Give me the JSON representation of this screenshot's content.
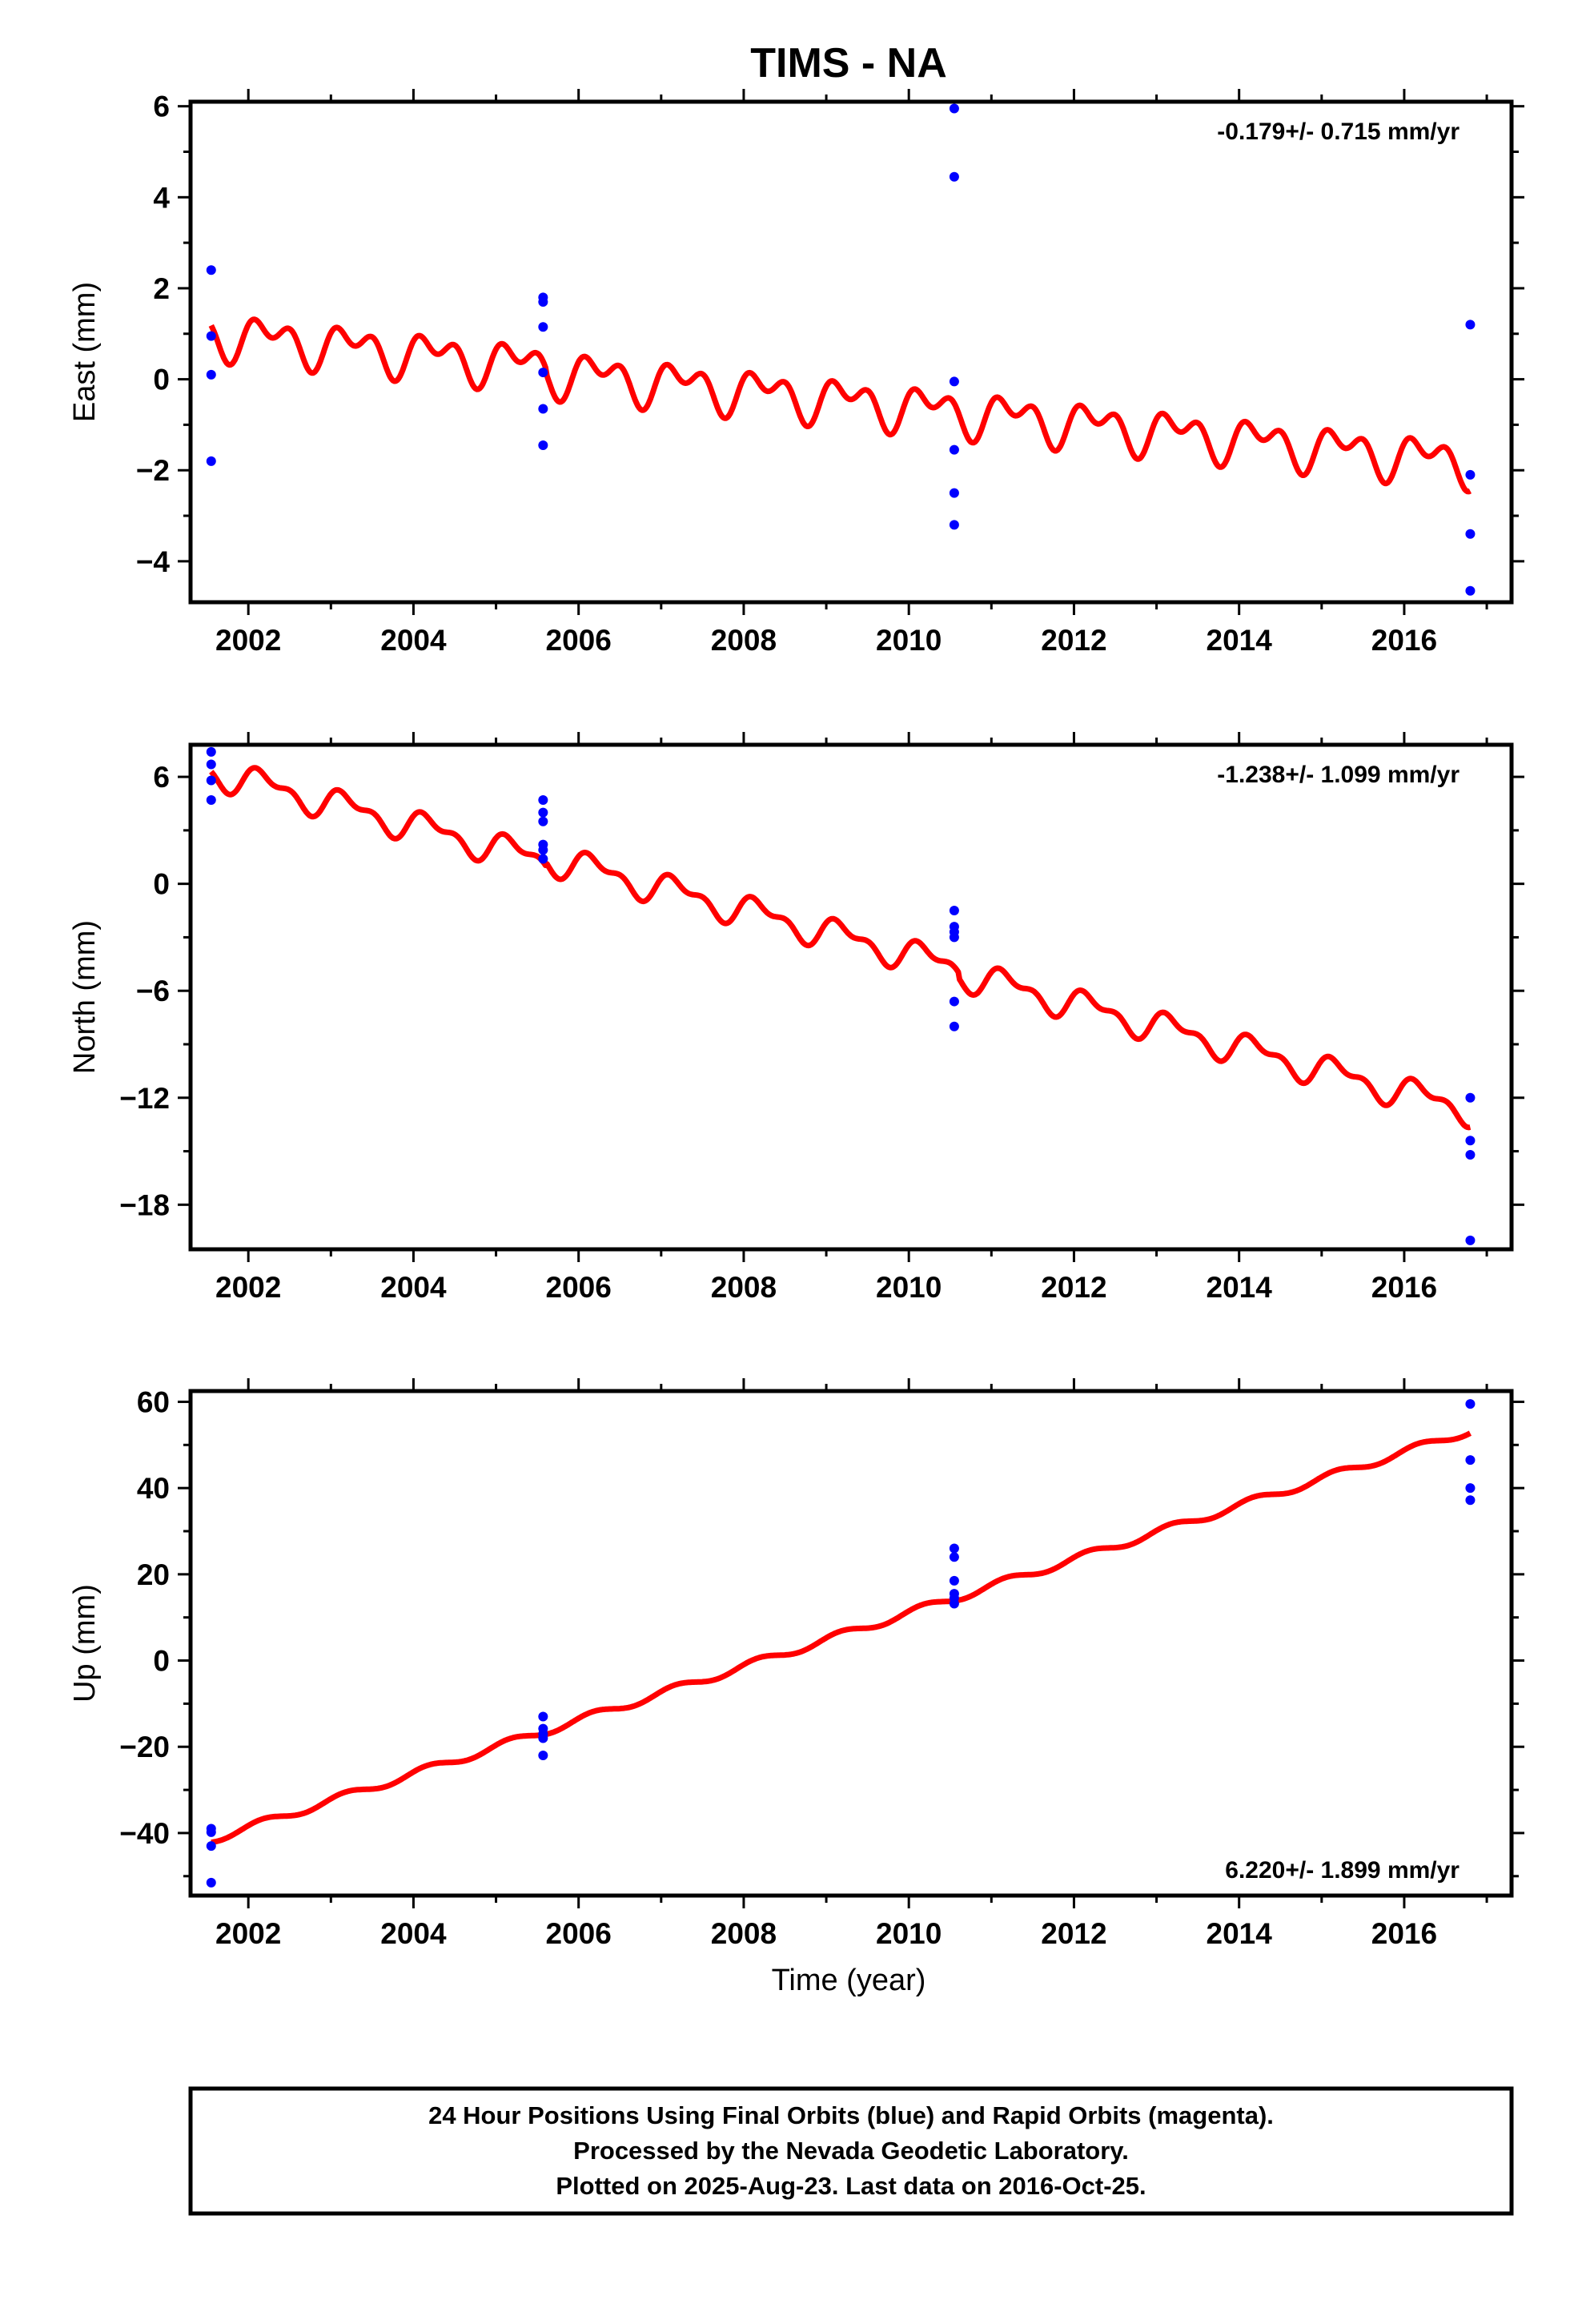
{
  "title": "TIMS - NA",
  "xlabel": "Time (year)",
  "footer": [
    "24 Hour Positions Using Final Orbits (blue) and Rapid Orbits (magenta).",
    "Processed by the Nevada Geodetic Laboratory.",
    "Plotted on 2025-Aug-23. Last data on 2016-Oct-25."
  ],
  "colors": {
    "observations": "#0000ff",
    "model": "#ff0000",
    "axes": "#000000"
  },
  "chart_data": [
    {
      "type": "scatter",
      "ylabel": "East (mm)",
      "rate_label": "-0.179+/- 0.715 mm/yr",
      "rate_position": "top-right",
      "xlim": [
        2001.3,
        2017.3
      ],
      "ylim": [
        -4.9,
        6.1
      ],
      "x_ticks": [
        2002,
        2004,
        2006,
        2008,
        2010,
        2012,
        2014,
        2016
      ],
      "x_tick_labels": [
        "2002",
        "2004",
        "2006",
        "2008",
        "2010",
        "2012",
        "2014",
        "2016"
      ],
      "y_ticks": [
        -4,
        -2,
        0,
        2,
        4,
        6
      ],
      "y_tick_labels": [
        "−4",
        "−2",
        "0",
        "2",
        "4",
        "6"
      ],
      "grid": false,
      "model": {
        "offset": 1.0,
        "rate": -0.179,
        "amp_annual": 0.35,
        "phase_annual": 0.0,
        "amp_semi": 0.3,
        "phase_semi": 1.2,
        "step_years": [
          2005.6,
          2010.6
        ],
        "steps": [
          -0.1,
          0.0
        ]
      },
      "observations": [
        {
          "x": 2001.55,
          "y": 2.4
        },
        {
          "x": 2001.55,
          "y": 0.95
        },
        {
          "x": 2001.55,
          "y": 0.1
        },
        {
          "x": 2001.55,
          "y": -1.8
        },
        {
          "x": 2005.57,
          "y": 1.8
        },
        {
          "x": 2005.57,
          "y": 1.7
        },
        {
          "x": 2005.57,
          "y": 1.15
        },
        {
          "x": 2005.57,
          "y": 0.15
        },
        {
          "x": 2005.57,
          "y": -0.65
        },
        {
          "x": 2005.57,
          "y": -1.45
        },
        {
          "x": 2010.55,
          "y": 5.95
        },
        {
          "x": 2010.55,
          "y": 4.45
        },
        {
          "x": 2010.55,
          "y": -0.05
        },
        {
          "x": 2010.55,
          "y": -1.55
        },
        {
          "x": 2010.55,
          "y": -2.5
        },
        {
          "x": 2010.55,
          "y": -3.2
        },
        {
          "x": 2016.8,
          "y": 1.2
        },
        {
          "x": 2016.8,
          "y": -2.1
        },
        {
          "x": 2016.8,
          "y": -3.4
        },
        {
          "x": 2016.8,
          "y": -4.65
        }
      ]
    },
    {
      "type": "scatter",
      "ylabel": "North (mm)",
      "rate_label": "-1.238+/- 1.099 mm/yr",
      "rate_position": "top-right",
      "xlim": [
        2001.3,
        2017.3
      ],
      "ylim": [
        -20.5,
        7.8
      ],
      "x_ticks": [
        2002,
        2004,
        2006,
        2008,
        2010,
        2012,
        2014,
        2016
      ],
      "x_tick_labels": [
        "2002",
        "2004",
        "2006",
        "2008",
        "2010",
        "2012",
        "2014",
        "2016"
      ],
      "y_ticks": [
        -18,
        -12,
        -6,
        0,
        6
      ],
      "y_tick_labels": [
        "−18",
        "−12",
        "−6",
        "0",
        "6"
      ],
      "grid": false,
      "model": {
        "offset": 6.3,
        "rate": -1.238,
        "amp_annual": 0.7,
        "phase_annual": 0.3,
        "amp_semi": 0.4,
        "phase_semi": 1.0,
        "step_years": [
          2005.6,
          2010.6
        ],
        "steps": [
          0.2,
          -0.3
        ]
      },
      "observations": [
        {
          "x": 2001.55,
          "y": 7.4
        },
        {
          "x": 2001.55,
          "y": 6.7
        },
        {
          "x": 2001.55,
          "y": 5.8
        },
        {
          "x": 2001.55,
          "y": 4.7
        },
        {
          "x": 2005.57,
          "y": 4.7
        },
        {
          "x": 2005.57,
          "y": 4.0
        },
        {
          "x": 2005.57,
          "y": 3.5
        },
        {
          "x": 2005.57,
          "y": 2.2
        },
        {
          "x": 2005.57,
          "y": 1.9
        },
        {
          "x": 2005.57,
          "y": 1.4
        },
        {
          "x": 2010.55,
          "y": -1.5
        },
        {
          "x": 2010.55,
          "y": -2.4
        },
        {
          "x": 2010.55,
          "y": -2.7
        },
        {
          "x": 2010.55,
          "y": -3.0
        },
        {
          "x": 2010.55,
          "y": -6.6
        },
        {
          "x": 2010.55,
          "y": -8.0
        },
        {
          "x": 2016.8,
          "y": -12.0
        },
        {
          "x": 2016.8,
          "y": -14.4
        },
        {
          "x": 2016.8,
          "y": -15.2
        },
        {
          "x": 2016.8,
          "y": -20.0
        }
      ]
    },
    {
      "type": "scatter",
      "ylabel": "Up (mm)",
      "rate_label": "6.220+/- 1.899 mm/yr",
      "rate_position": "bottom-right",
      "xlim": [
        2001.3,
        2017.3
      ],
      "ylim": [
        -54.5,
        62.5
      ],
      "x_ticks": [
        2002,
        2004,
        2006,
        2008,
        2010,
        2012,
        2014,
        2016
      ],
      "x_tick_labels": [
        "2002",
        "2004",
        "2006",
        "2008",
        "2010",
        "2012",
        "2014",
        "2016"
      ],
      "y_ticks": [
        -40,
        -20,
        0,
        20,
        40,
        60
      ],
      "y_tick_labels": [
        "−40",
        "−20",
        "0",
        "20",
        "40",
        "60"
      ],
      "grid": false,
      "model": {
        "offset": -41.5,
        "rate": 6.22,
        "amp_annual": 0.9,
        "phase_annual": 0.5,
        "amp_semi": 0.0,
        "phase_semi": 0.0,
        "step_years": [],
        "steps": []
      },
      "observations": [
        {
          "x": 2001.55,
          "y": -39.0
        },
        {
          "x": 2001.55,
          "y": -39.8
        },
        {
          "x": 2001.55,
          "y": -43.0
        },
        {
          "x": 2001.55,
          "y": -51.5
        },
        {
          "x": 2005.57,
          "y": -13.0
        },
        {
          "x": 2005.57,
          "y": -15.8
        },
        {
          "x": 2005.57,
          "y": -17.0
        },
        {
          "x": 2005.57,
          "y": -18.0
        },
        {
          "x": 2005.57,
          "y": -22.0
        },
        {
          "x": 2010.55,
          "y": 26.0
        },
        {
          "x": 2010.55,
          "y": 24.0
        },
        {
          "x": 2010.55,
          "y": 18.5
        },
        {
          "x": 2010.55,
          "y": 15.5
        },
        {
          "x": 2010.55,
          "y": 14.5
        },
        {
          "x": 2010.55,
          "y": 13.2
        },
        {
          "x": 2016.8,
          "y": 59.5
        },
        {
          "x": 2016.8,
          "y": 46.5
        },
        {
          "x": 2016.8,
          "y": 40.0
        },
        {
          "x": 2016.8,
          "y": 37.2
        }
      ]
    }
  ]
}
